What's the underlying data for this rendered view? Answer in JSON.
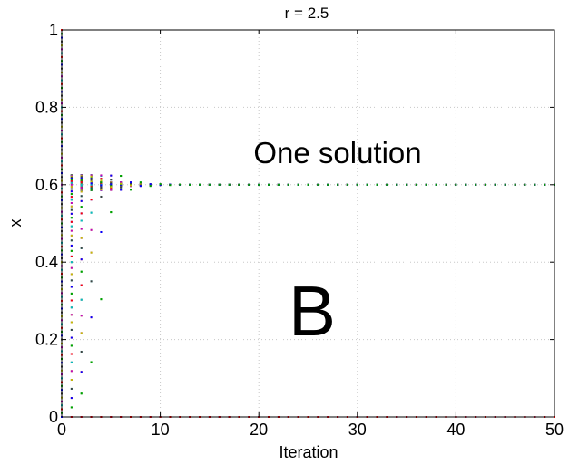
{
  "chart_data": {
    "type": "scatter",
    "title": "r = 2.5",
    "xlabel": "Iteration",
    "ylabel": "x",
    "xlim": [
      0,
      50
    ],
    "ylim": [
      0,
      1
    ],
    "xticks": [
      0,
      10,
      20,
      30,
      40,
      50
    ],
    "yticks": [
      0,
      0.2,
      0.4,
      0.6,
      0.8,
      1
    ],
    "ytick_labels": [
      "0",
      "0.2",
      "0.4",
      "0.6",
      "0.8",
      "1"
    ],
    "grid": true,
    "grid_style": "dotted",
    "legend": "none",
    "model": "logistic map x(n+1) = r·x(n)·(1 − x(n)), r = 2.5",
    "fixed_point": 0.6,
    "iterations": [
      0,
      50
    ],
    "initial_conditions": "x0 evenly spaced from 0 to 1",
    "marker_colors": [
      "#0000ff",
      "#00a000",
      "#ff0000",
      "#00c0c0",
      "#c000c0",
      "#c0c000",
      "#404040"
    ],
    "annotations": [
      "One solution",
      "B"
    ]
  }
}
